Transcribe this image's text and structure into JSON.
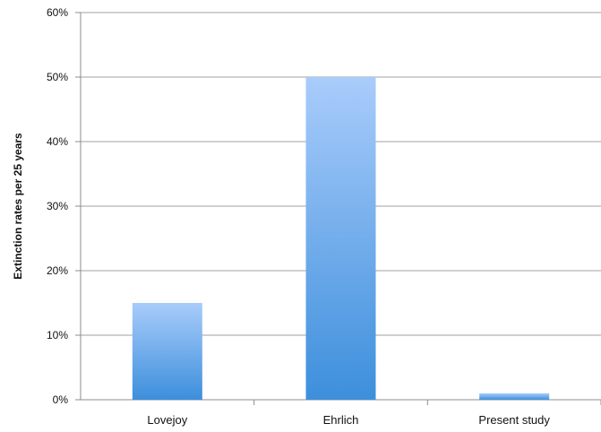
{
  "chart_data": {
    "type": "bar",
    "title": "",
    "xlabel": "",
    "ylabel": "Extinction rates per 25 years",
    "categories": [
      "Lovejoy",
      "Ehrlich",
      "Present study"
    ],
    "values": [
      15,
      50,
      1
    ],
    "value_unit": "%",
    "ylim": [
      0,
      60
    ],
    "yticks": [
      0,
      10,
      20,
      30,
      40,
      50,
      60
    ],
    "ytick_labels": [
      "0%",
      "10%",
      "20%",
      "30%",
      "40%",
      "50%",
      "60%"
    ],
    "grid": true,
    "legend": "none",
    "colors": {
      "bar_top": "#a9ccfb",
      "bar_bottom": "#3d8fdc",
      "grid": "#b5b5b5",
      "axis": "#8c8c8c"
    }
  }
}
